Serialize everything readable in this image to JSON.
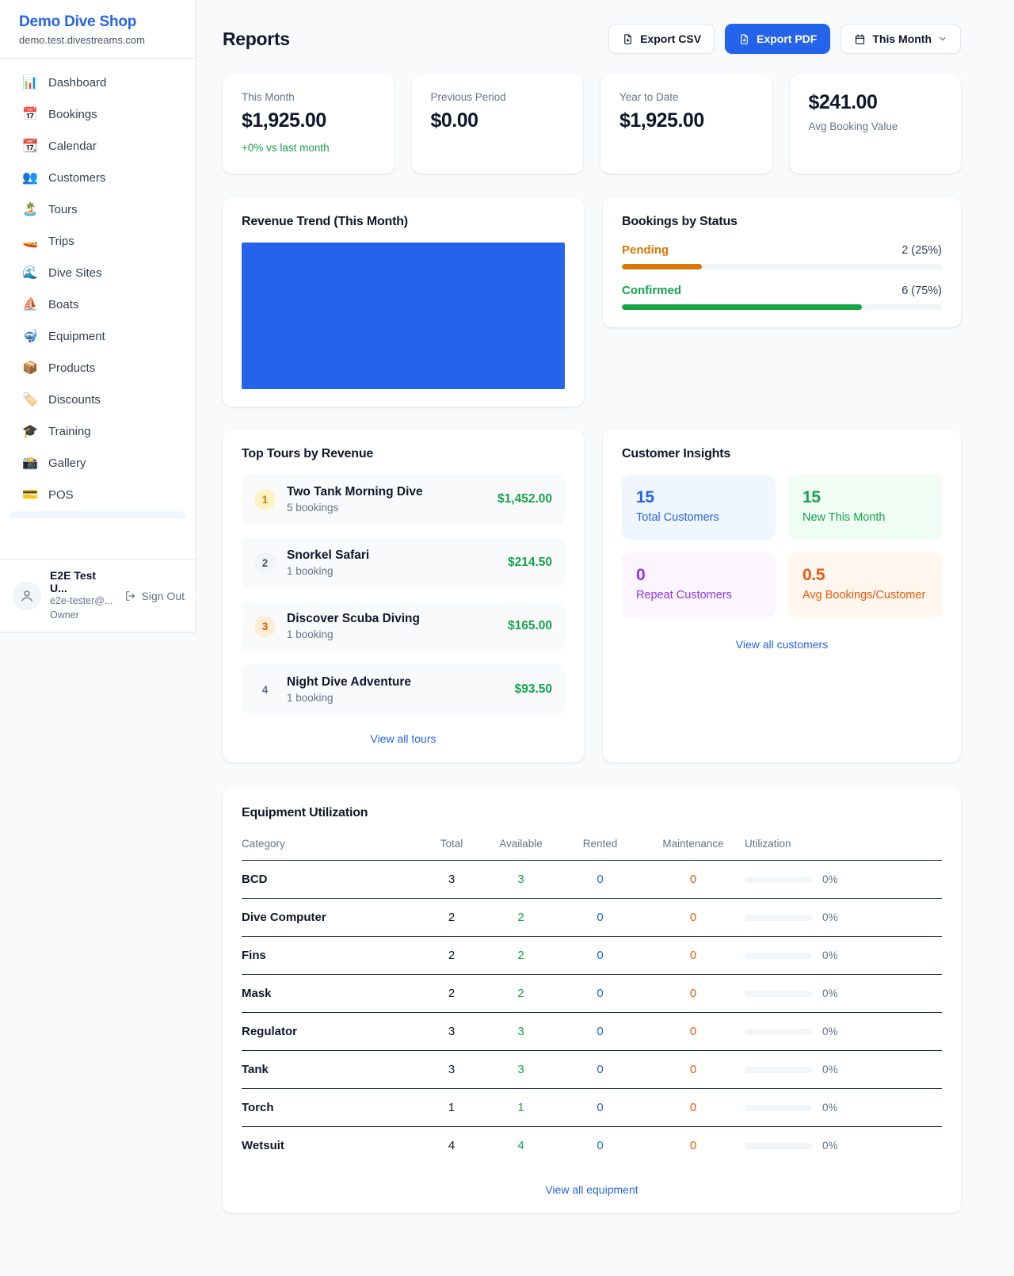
{
  "colors": {
    "accent_blue": "#2563eb",
    "green": "#16a34a",
    "amber": "#d97706",
    "deep_orange": "#ea580c",
    "purple": "#9333ea",
    "page_bg": "#f8fafc"
  },
  "brand": {
    "name": "Demo Dive Shop",
    "domain": "demo.test.divestreams.com"
  },
  "sidebar": {
    "items": [
      {
        "icon": "📊",
        "label": "Dashboard"
      },
      {
        "icon": "📅",
        "label": "Bookings"
      },
      {
        "icon": "📆",
        "label": "Calendar"
      },
      {
        "icon": "👥",
        "label": "Customers"
      },
      {
        "icon": "🏝️",
        "label": "Tours"
      },
      {
        "icon": "🚤",
        "label": "Trips"
      },
      {
        "icon": "🌊",
        "label": "Dive Sites"
      },
      {
        "icon": "⛵",
        "label": "Boats"
      },
      {
        "icon": "🤿",
        "label": "Equipment"
      },
      {
        "icon": "📦",
        "label": "Products"
      },
      {
        "icon": "🏷️",
        "label": "Discounts"
      },
      {
        "icon": "🎓",
        "label": "Training"
      },
      {
        "icon": "📸",
        "label": "Gallery"
      },
      {
        "icon": "💳",
        "label": "POS"
      }
    ],
    "user": {
      "name": "E2E Test U...",
      "email": "e2e-tester@...",
      "role": "Owner",
      "sign_out_label": "Sign Out"
    }
  },
  "header": {
    "title": "Reports",
    "export_csv_label": "Export CSV",
    "export_pdf_label": "Export PDF",
    "period_label": "This Month"
  },
  "stats": [
    {
      "label": "This Month",
      "value": "$1,925.00",
      "note": "+0% vs last month"
    },
    {
      "label": "Previous Period",
      "value": "$0.00"
    },
    {
      "label": "Year to Date",
      "value": "$1,925.00"
    },
    {
      "label": "Avg Booking Value",
      "value": "$241.00"
    }
  ],
  "revenue_trend": {
    "title": "Revenue Trend (This Month)"
  },
  "bookings_by_status": {
    "title": "Bookings by Status",
    "rows": [
      {
        "label": "Pending",
        "count_text": "2 (25%)",
        "pct": 25,
        "color": "#d97706"
      },
      {
        "label": "Confirmed",
        "count_text": "6 (75%)",
        "pct": 75,
        "color": "#16a34a"
      }
    ]
  },
  "top_tours": {
    "title": "Top Tours by Revenue",
    "items": [
      {
        "rank": "1",
        "name": "Two Tank Morning Dive",
        "bookings": "5 bookings",
        "revenue": "$1,452.00"
      },
      {
        "rank": "2",
        "name": "Snorkel Safari",
        "bookings": "1 booking",
        "revenue": "$214.50"
      },
      {
        "rank": "3",
        "name": "Discover Scuba Diving",
        "bookings": "1 booking",
        "revenue": "$165.00"
      },
      {
        "rank": "4",
        "name": "Night Dive Adventure",
        "bookings": "1 booking",
        "revenue": "$93.50"
      }
    ],
    "view_all": "View all tours"
  },
  "customer_insights": {
    "title": "Customer Insights",
    "boxes": [
      {
        "value": "15",
        "label": "Total Customers"
      },
      {
        "value": "15",
        "label": "New This Month"
      },
      {
        "value": "0",
        "label": "Repeat Customers"
      },
      {
        "value": "0.5",
        "label": "Avg Bookings/Customer"
      }
    ],
    "view_all": "View all customers"
  },
  "equipment": {
    "title": "Equipment Utilization",
    "columns": [
      "Category",
      "Total",
      "Available",
      "Rented",
      "Maintenance",
      "Utilization"
    ],
    "rows": [
      {
        "category": "BCD",
        "total": "3",
        "available": "3",
        "rented": "0",
        "maintenance": "0",
        "utilization": "0%",
        "utilization_pct": 0
      },
      {
        "category": "Dive Computer",
        "total": "2",
        "available": "2",
        "rented": "0",
        "maintenance": "0",
        "utilization": "0%",
        "utilization_pct": 0
      },
      {
        "category": "Fins",
        "total": "2",
        "available": "2",
        "rented": "0",
        "maintenance": "0",
        "utilization": "0%",
        "utilization_pct": 0
      },
      {
        "category": "Mask",
        "total": "2",
        "available": "2",
        "rented": "0",
        "maintenance": "0",
        "utilization": "0%",
        "utilization_pct": 0
      },
      {
        "category": "Regulator",
        "total": "3",
        "available": "3",
        "rented": "0",
        "maintenance": "0",
        "utilization": "0%",
        "utilization_pct": 0
      },
      {
        "category": "Tank",
        "total": "3",
        "available": "3",
        "rented": "0",
        "maintenance": "0",
        "utilization": "0%",
        "utilization_pct": 0
      },
      {
        "category": "Torch",
        "total": "1",
        "available": "1",
        "rented": "0",
        "maintenance": "0",
        "utilization": "0%",
        "utilization_pct": 0
      },
      {
        "category": "Wetsuit",
        "total": "4",
        "available": "4",
        "rented": "0",
        "maintenance": "0",
        "utilization": "0%",
        "utilization_pct": 0
      }
    ],
    "view_all": "View all equipment"
  }
}
